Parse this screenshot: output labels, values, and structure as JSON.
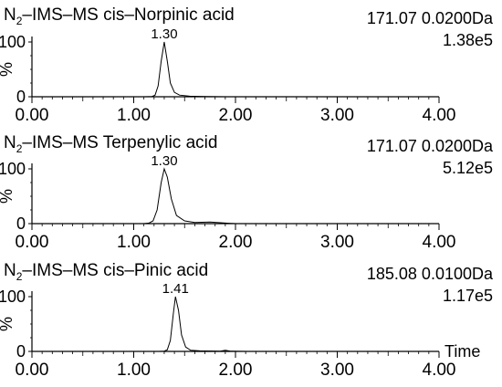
{
  "chart_data": [
    {
      "type": "line",
      "title_prefix": "N",
      "title_subscript": "2",
      "title_rest": "–IMS–MS cis–Norpinic acid",
      "mass_label": "171.07 0.0200Da",
      "intensity_label": "1.38e5",
      "ylabel": "%",
      "xlabel": "",
      "xlim": [
        0,
        4
      ],
      "ylim": [
        0,
        100
      ],
      "x_ticks": [
        "0.00",
        "1.00",
        "2.00",
        "3.00",
        "4.00"
      ],
      "y_ticks": [
        "0",
        "100"
      ],
      "peak_label": "1.30",
      "peak_x": 1.3,
      "x": [
        0.0,
        1.1,
        1.18,
        1.21,
        1.24,
        1.27,
        1.3,
        1.33,
        1.36,
        1.4,
        1.45,
        1.55,
        1.7,
        1.9,
        4.0
      ],
      "y": [
        0,
        0,
        0.5,
        3,
        20,
        65,
        100,
        65,
        25,
        8,
        3,
        1,
        0.5,
        0,
        0
      ]
    },
    {
      "type": "line",
      "title_prefix": "N",
      "title_subscript": "2",
      "title_rest": "–IMS–MS Terpenylic acid",
      "mass_label": "171.07 0.0200Da",
      "intensity_label": "5.12e5",
      "ylabel": "%",
      "xlabel": "",
      "xlim": [
        0,
        4
      ],
      "ylim": [
        0,
        100
      ],
      "x_ticks": [
        "0.00",
        "1.00",
        "2.00",
        "3.00",
        "4.00"
      ],
      "y_ticks": [
        "0",
        "100"
      ],
      "peak_label": "1.30",
      "peak_x": 1.3,
      "x": [
        0.0,
        1.1,
        1.15,
        1.19,
        1.23,
        1.27,
        1.3,
        1.33,
        1.37,
        1.42,
        1.5,
        1.6,
        1.75,
        1.9,
        2.0,
        4.0
      ],
      "y": [
        0,
        0,
        1,
        5,
        25,
        75,
        100,
        85,
        45,
        15,
        5,
        2,
        3,
        1,
        0,
        0
      ]
    },
    {
      "type": "line",
      "title_prefix": "N",
      "title_subscript": "2",
      "title_rest": "–IMS–MS cis–Pinic acid",
      "mass_label": "185.08 0.0100Da",
      "intensity_label": "1.17e5",
      "ylabel": "%",
      "xlabel": "Time",
      "xlim": [
        0,
        4
      ],
      "ylim": [
        0,
        100
      ],
      "x_ticks": [
        "0.00",
        "1.00",
        "2.00",
        "3.00",
        "4.00"
      ],
      "y_ticks": [
        "0",
        "100"
      ],
      "peak_label": "1.41",
      "peak_x": 1.41,
      "x": [
        0.0,
        1.25,
        1.3,
        1.33,
        1.36,
        1.39,
        1.41,
        1.44,
        1.47,
        1.51,
        1.56,
        1.65,
        1.85,
        1.9,
        1.95,
        2.1,
        4.0
      ],
      "y": [
        0,
        0,
        0.5,
        3,
        20,
        70,
        100,
        75,
        30,
        8,
        2,
        1,
        0.5,
        2,
        0.5,
        0,
        0
      ]
    }
  ]
}
